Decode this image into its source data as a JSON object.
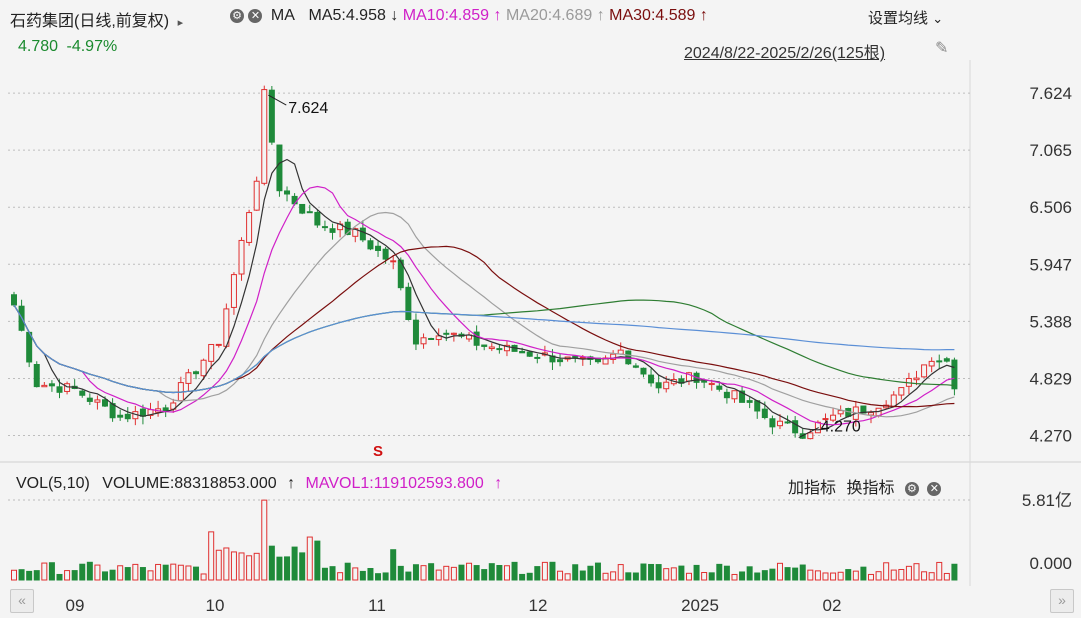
{
  "header": {
    "stock_name": "石药集团",
    "period_label": "(日线,前复权)",
    "expand_arrow": "▸",
    "ma_label": "MA",
    "ma5": "MA5:4.958",
    "ma5_arrow": "↓",
    "ma10": "MA10:4.859",
    "ma10_arrow": "↑",
    "ma20": "MA20:4.689",
    "ma20_arrow": "↑",
    "ma30": "MA30:4.589",
    "ma30_arrow": "↑",
    "settings_label": "设置均线",
    "settings_caret": "⌄",
    "price": "4.780",
    "change": "-4.97%",
    "date_range": "2024/8/22-2025/2/26(125根)"
  },
  "volume_header": {
    "vol_label": "VOL(5,10)",
    "volume": "VOLUME:88318853.000",
    "volume_arrow": "↑",
    "mavol1": "MAVOL1:119102593.800",
    "mavol1_arrow": "↑",
    "add_indicator": "加指标",
    "switch_indicator": "换指标"
  },
  "icons": {
    "gear": "gear-icon",
    "close": "close-icon",
    "pin": "pin-icon",
    "scroll_left": "double-chevron-left-icon",
    "scroll_right": "double-chevron-right-icon"
  },
  "colors": {
    "up": "#e03030",
    "down": "#1f8a3a",
    "ma5": "#333333",
    "ma10": "#d020c8",
    "ma20": "#a0a0a0",
    "ma30": "#7a0e0e",
    "ma60": "#2e7d32",
    "ma120": "#5b8fd6"
  },
  "chart_data": {
    "type": "candlestick",
    "price_axis_ticks": [
      "7.624",
      "7.065",
      "6.506",
      "5.947",
      "5.388",
      "4.829",
      "4.270"
    ],
    "ylim": [
      4.05,
      7.85
    ],
    "x_tick_labels": [
      "09",
      "10",
      "11",
      "12",
      "2025",
      "02"
    ],
    "annotations": {
      "high_label": "7.624",
      "low_label": "4.270",
      "signal_label": "S"
    },
    "volume_axis_ticks": [
      "5.81亿",
      "0.000"
    ],
    "volume_ylim": [
      0,
      5.81
    ],
    "volume_unit": "亿",
    "count": 125
  }
}
